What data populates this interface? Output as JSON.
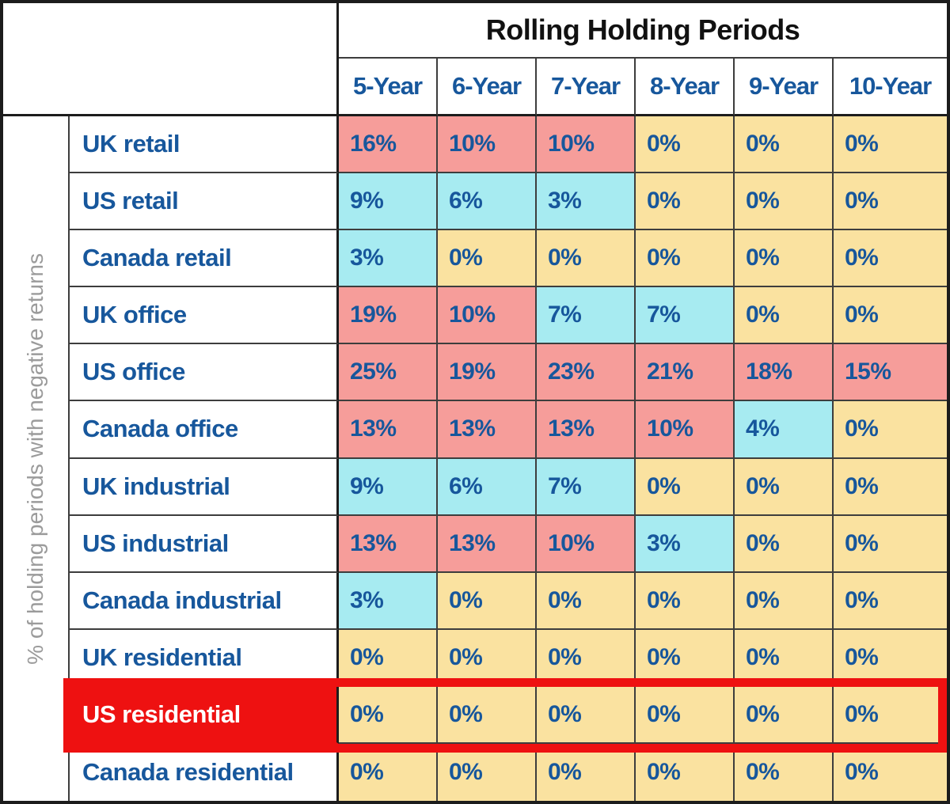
{
  "palette": {
    "pink": "#F69D9A",
    "cyan": "#A7EBF1",
    "yellow": "#FAE2A0",
    "red": "#EE1111",
    "blue": "#17579C",
    "gray": "#9B9B9B",
    "ink": "#111111",
    "frame": "#1C1C1C",
    "grid": "#3D3D3D"
  },
  "chart_data": {
    "type": "heatmap",
    "title": "Rolling Holding Periods",
    "ylabel": "% of holding periods with negative returns",
    "columns": [
      "5-Year",
      "6-Year",
      "7-Year",
      "8-Year",
      "9-Year",
      "10-Year"
    ],
    "unit": "%",
    "grid": true,
    "legend_position": "none",
    "highlighted_row": "US residential",
    "cell_color_key": {
      "pink": "#F69D9A",
      "cyan": "#A7EBF1",
      "yellow": "#FAE2A0"
    },
    "rows": [
      {
        "label": "UK retail",
        "display": [
          "16%",
          "10%",
          "10%",
          "0%",
          "0%",
          "0%"
        ],
        "values": [
          16,
          10,
          10,
          0,
          0,
          0
        ],
        "colors": [
          "pink",
          "pink",
          "pink",
          "yellow",
          "yellow",
          "yellow"
        ],
        "highlight": false
      },
      {
        "label": "US retail",
        "display": [
          "9%",
          "6%",
          "3%",
          "0%",
          "0%",
          "0%"
        ],
        "values": [
          9,
          6,
          3,
          0,
          0,
          0
        ],
        "colors": [
          "cyan",
          "cyan",
          "cyan",
          "yellow",
          "yellow",
          "yellow"
        ],
        "highlight": false
      },
      {
        "label": "Canada retail",
        "display": [
          "3%",
          "0%",
          "0%",
          "0%",
          "0%",
          "0%"
        ],
        "values": [
          3,
          0,
          0,
          0,
          0,
          0
        ],
        "colors": [
          "cyan",
          "yellow",
          "yellow",
          "yellow",
          "yellow",
          "yellow"
        ],
        "highlight": false
      },
      {
        "label": "UK office",
        "display": [
          "19%",
          "10%",
          "7%",
          "7%",
          "0%",
          "0%"
        ],
        "values": [
          19,
          10,
          7,
          7,
          0,
          0
        ],
        "colors": [
          "pink",
          "pink",
          "cyan",
          "cyan",
          "yellow",
          "yellow"
        ],
        "highlight": false
      },
      {
        "label": "US office",
        "display": [
          "25%",
          "19%",
          "23%",
          "21%",
          "18%",
          "15%"
        ],
        "values": [
          25,
          19,
          23,
          21,
          18,
          15
        ],
        "colors": [
          "pink",
          "pink",
          "pink",
          "pink",
          "pink",
          "pink"
        ],
        "highlight": false
      },
      {
        "label": "Canada office",
        "display": [
          "13%",
          "13%",
          "13%",
          "10%",
          "4%",
          "0%"
        ],
        "values": [
          13,
          13,
          13,
          10,
          4,
          0
        ],
        "colors": [
          "pink",
          "pink",
          "pink",
          "pink",
          "cyan",
          "yellow"
        ],
        "highlight": false
      },
      {
        "label": "UK industrial",
        "display": [
          "9%",
          "6%",
          "7%",
          "0%",
          "0%",
          "0%"
        ],
        "values": [
          9,
          6,
          7,
          0,
          0,
          0
        ],
        "colors": [
          "cyan",
          "cyan",
          "cyan",
          "yellow",
          "yellow",
          "yellow"
        ],
        "highlight": false
      },
      {
        "label": "US industrial",
        "display": [
          "13%",
          "13%",
          "10%",
          "3%",
          "0%",
          "0%"
        ],
        "values": [
          13,
          13,
          10,
          3,
          0,
          0
        ],
        "colors": [
          "pink",
          "pink",
          "pink",
          "cyan",
          "yellow",
          "yellow"
        ],
        "highlight": false
      },
      {
        "label": "Canada industrial",
        "display": [
          "3%",
          "0%",
          "0%",
          "0%",
          "0%",
          "0%"
        ],
        "values": [
          3,
          0,
          0,
          0,
          0,
          0
        ],
        "colors": [
          "cyan",
          "yellow",
          "yellow",
          "yellow",
          "yellow",
          "yellow"
        ],
        "highlight": false
      },
      {
        "label": "UK residential",
        "display": [
          "0%",
          "0%",
          "0%",
          "0%",
          "0%",
          "0%"
        ],
        "values": [
          0,
          0,
          0,
          0,
          0,
          0
        ],
        "colors": [
          "yellow",
          "yellow",
          "yellow",
          "yellow",
          "yellow",
          "yellow"
        ],
        "highlight": false
      },
      {
        "label": "US residential",
        "display": [
          "0%",
          "0%",
          "0%",
          "0%",
          "0%",
          "0%"
        ],
        "values": [
          0,
          0,
          0,
          0,
          0,
          0
        ],
        "colors": [
          "yellow",
          "yellow",
          "yellow",
          "yellow",
          "yellow",
          "yellow"
        ],
        "highlight": true
      },
      {
        "label": "Canada residential",
        "display": [
          "0%",
          "0%",
          "0%",
          "0%",
          "0%",
          "0%"
        ],
        "values": [
          0,
          0,
          0,
          0,
          0,
          0
        ],
        "colors": [
          "yellow",
          "yellow",
          "yellow",
          "yellow",
          "yellow",
          "yellow"
        ],
        "highlight": false
      }
    ]
  }
}
